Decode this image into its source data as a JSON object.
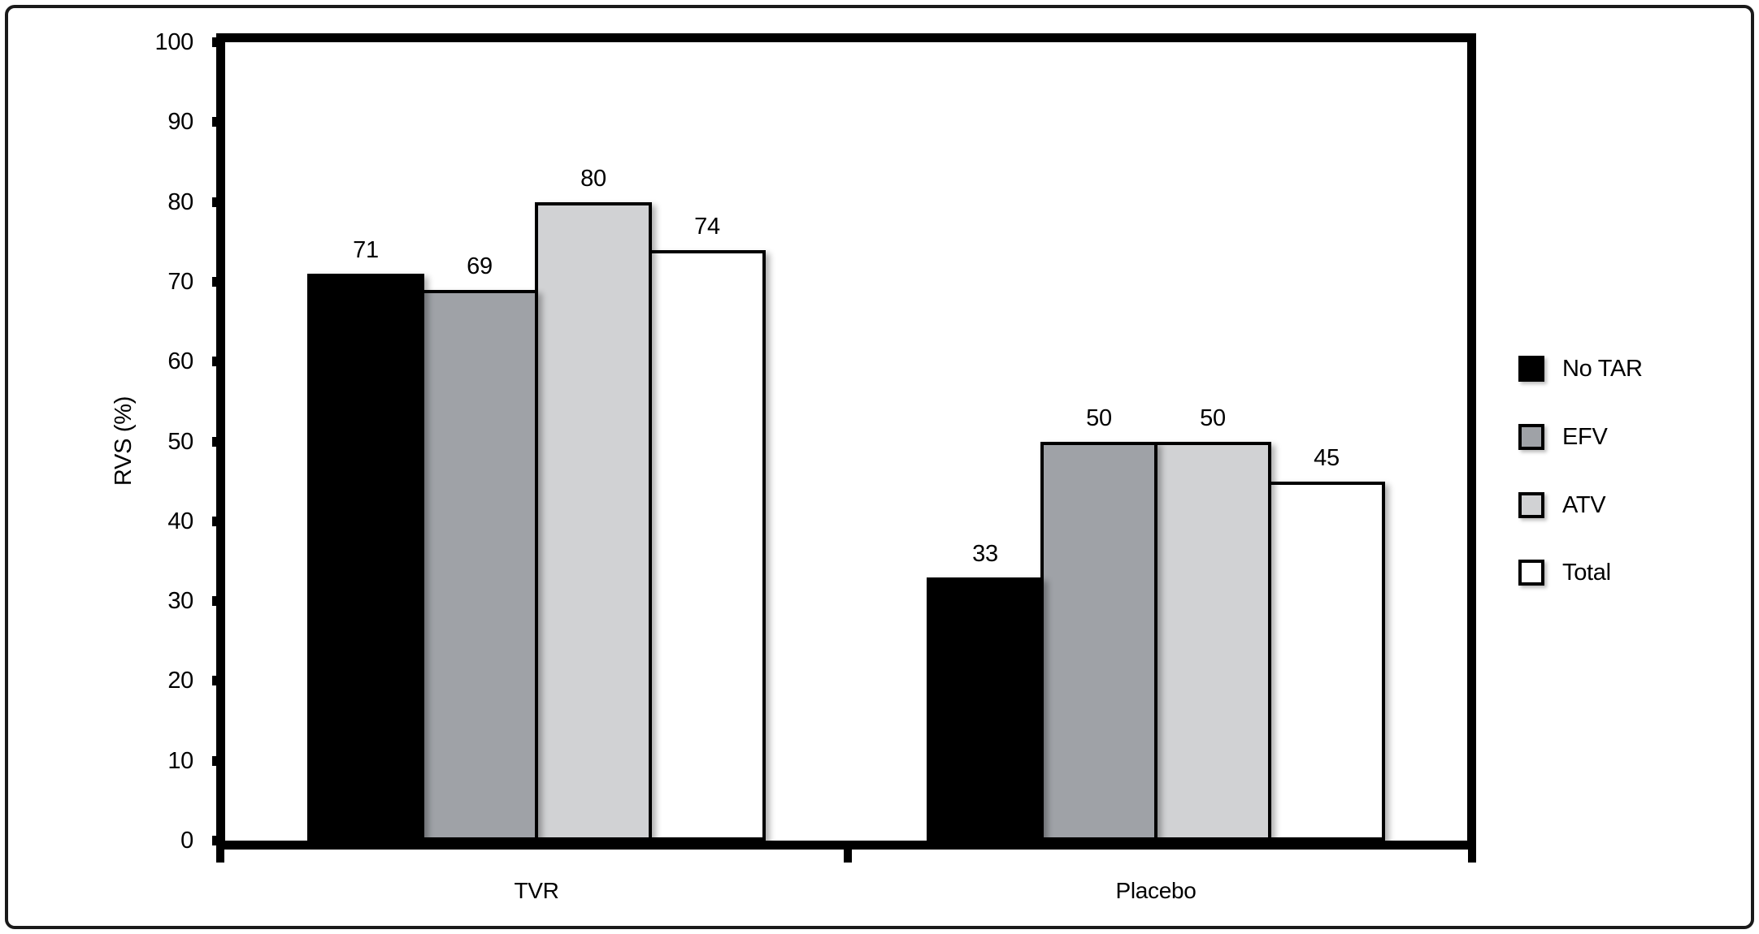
{
  "figure": {
    "background_color": "#ffffff",
    "border_color": "#1a1a1a"
  },
  "chart_data": {
    "type": "bar",
    "title": "",
    "categories": [
      "TVR",
      "Placebo"
    ],
    "series": [
      {
        "name": "No TAR",
        "color": "#000000",
        "values": [
          71,
          33
        ]
      },
      {
        "name": "EFV",
        "color": "#9fa2a7",
        "values": [
          69,
          50
        ]
      },
      {
        "name": "ATV",
        "color": "#d1d2d4",
        "values": [
          80,
          50
        ]
      },
      {
        "name": "Total",
        "color": "#ffffff",
        "values": [
          74,
          45
        ]
      }
    ],
    "xlabel": "",
    "ylabel": "RVS (%)",
    "ylim": [
      0,
      100
    ],
    "yticks": [
      0,
      10,
      20,
      30,
      40,
      50,
      60,
      70,
      80,
      90,
      100
    ],
    "grid": false,
    "bar_labels": true,
    "legend_position": "right",
    "axis_color": "#000000"
  }
}
